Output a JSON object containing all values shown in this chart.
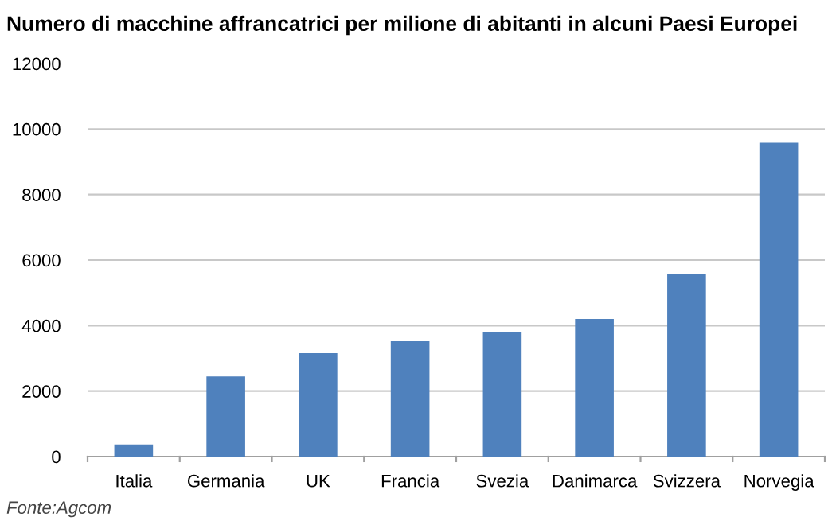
{
  "chart_data": {
    "type": "bar",
    "title": "Numero di macchine affrancatrici per milione di abitanti in alcuni Paesi Europei",
    "categories": [
      "Italia",
      "Germania",
      "UK",
      "Francia",
      "Svezia",
      "Danimarca",
      "Svizzera",
      "Norvegia"
    ],
    "values": [
      370,
      2450,
      3160,
      3520,
      3810,
      4200,
      5580,
      9580
    ],
    "color": "#4f81bd",
    "ylim": [
      0,
      12000
    ],
    "yticks": [
      0,
      2000,
      4000,
      6000,
      8000,
      10000,
      12000
    ],
    "grid": "y",
    "annotations": [
      "Fonte:Agcom"
    ]
  }
}
